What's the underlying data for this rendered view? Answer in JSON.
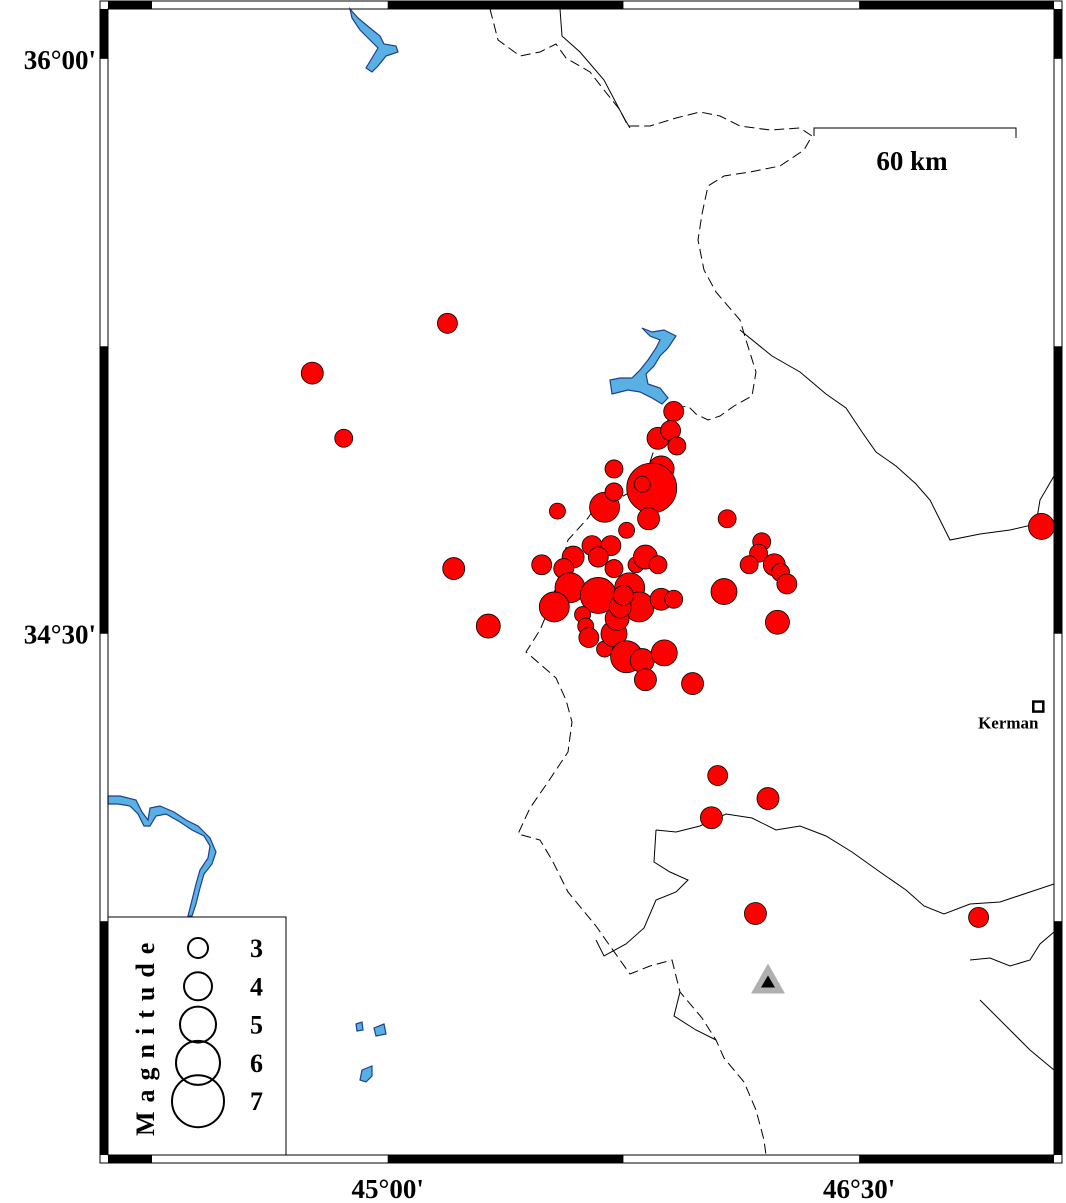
{
  "map": {
    "lon_range": [
      44.11,
      47.12
    ],
    "lat_range": [
      33.14,
      36.13
    ],
    "frame_interval_deg": 0.75,
    "x_tick_labels": [
      {
        "lon": 45.0,
        "label": "45°00'"
      },
      {
        "lon": 46.5,
        "label": "46°30'"
      }
    ],
    "y_tick_labels": [
      {
        "lat": 36.0,
        "label": "36°00'"
      },
      {
        "lat": 34.5,
        "label": "34°30'"
      }
    ],
    "scale_bar": {
      "label": "60 km"
    },
    "colors": {
      "event": "#ff0000",
      "water": "#58b0e3",
      "water_outline": "#1f3f8f",
      "station": "#000000",
      "station_halo": "#b0b0b0"
    }
  },
  "legend": {
    "title": "Magnitude",
    "entries": [
      {
        "mag": 3,
        "label": "3"
      },
      {
        "mag": 4,
        "label": "4"
      },
      {
        "mag": 5,
        "label": "5"
      },
      {
        "mag": 6,
        "label": "6"
      },
      {
        "mag": 7,
        "label": "7"
      }
    ]
  },
  "city": {
    "name": "Kerman",
    "lon": 47.07,
    "lat": 34.31
  },
  "station": {
    "lon": 46.21,
    "lat": 33.59
  },
  "events": [
    {
      "lon": 45.19,
      "lat": 35.31,
      "mag": 3.0
    },
    {
      "lon": 44.76,
      "lat": 35.18,
      "mag": 3.25
    },
    {
      "lon": 44.86,
      "lat": 35.01,
      "mag": 2.75
    },
    {
      "lon": 45.21,
      "lat": 34.67,
      "mag": 3.25
    },
    {
      "lon": 45.32,
      "lat": 34.52,
      "mag": 3.5
    },
    {
      "lon": 45.54,
      "lat": 34.82,
      "mag": 2.5
    },
    {
      "lon": 45.91,
      "lat": 35.08,
      "mag": 3.0
    },
    {
      "lon": 45.86,
      "lat": 35.01,
      "mag": 3.25
    },
    {
      "lon": 45.9,
      "lat": 35.03,
      "mag": 3.0
    },
    {
      "lon": 45.92,
      "lat": 34.99,
      "mag": 2.75
    },
    {
      "lon": 45.87,
      "lat": 34.93,
      "mag": 3.75
    },
    {
      "lon": 45.72,
      "lat": 34.93,
      "mag": 2.75
    },
    {
      "lon": 45.84,
      "lat": 34.88,
      "mag": 6.75
    },
    {
      "lon": 45.81,
      "lat": 34.89,
      "mag": 2.5
    },
    {
      "lon": 45.69,
      "lat": 34.83,
      "mag": 4.25
    },
    {
      "lon": 45.72,
      "lat": 34.87,
      "mag": 2.75
    },
    {
      "lon": 45.83,
      "lat": 34.8,
      "mag": 3.25
    },
    {
      "lon": 45.76,
      "lat": 34.77,
      "mag": 2.5
    },
    {
      "lon": 46.08,
      "lat": 34.8,
      "mag": 2.75
    },
    {
      "lon": 45.49,
      "lat": 34.68,
      "mag": 3.0
    },
    {
      "lon": 45.59,
      "lat": 34.7,
      "mag": 3.25
    },
    {
      "lon": 45.65,
      "lat": 34.73,
      "mag": 3.0
    },
    {
      "lon": 45.71,
      "lat": 34.73,
      "mag": 3.0
    },
    {
      "lon": 45.56,
      "lat": 34.67,
      "mag": 3.0
    },
    {
      "lon": 45.58,
      "lat": 34.62,
      "mag": 4.25
    },
    {
      "lon": 45.67,
      "lat": 34.7,
      "mag": 3.0
    },
    {
      "lon": 45.72,
      "lat": 34.67,
      "mag": 2.75
    },
    {
      "lon": 45.79,
      "lat": 34.68,
      "mag": 2.5
    },
    {
      "lon": 45.82,
      "lat": 34.7,
      "mag": 3.5
    },
    {
      "lon": 45.86,
      "lat": 34.68,
      "mag": 2.75
    },
    {
      "lon": 45.67,
      "lat": 34.6,
      "mag": 5.0
    },
    {
      "lon": 45.77,
      "lat": 34.62,
      "mag": 4.25
    },
    {
      "lon": 45.8,
      "lat": 34.57,
      "mag": 4.25
    },
    {
      "lon": 45.87,
      "lat": 34.59,
      "mag": 3.25
    },
    {
      "lon": 45.91,
      "lat": 34.59,
      "mag": 2.75
    },
    {
      "lon": 45.53,
      "lat": 34.57,
      "mag": 4.25
    },
    {
      "lon": 45.62,
      "lat": 34.55,
      "mag": 2.5
    },
    {
      "lon": 45.63,
      "lat": 34.52,
      "mag": 2.5
    },
    {
      "lon": 45.64,
      "lat": 34.49,
      "mag": 3.0
    },
    {
      "lon": 45.69,
      "lat": 34.46,
      "mag": 2.5
    },
    {
      "lon": 45.72,
      "lat": 34.5,
      "mag": 3.75
    },
    {
      "lon": 45.73,
      "lat": 34.54,
      "mag": 3.5
    },
    {
      "lon": 45.76,
      "lat": 34.44,
      "mag": 4.5
    },
    {
      "lon": 45.81,
      "lat": 34.43,
      "mag": 3.5
    },
    {
      "lon": 45.88,
      "lat": 34.45,
      "mag": 3.75
    },
    {
      "lon": 45.82,
      "lat": 34.38,
      "mag": 3.25
    },
    {
      "lon": 45.74,
      "lat": 34.57,
      "mag": 3.25
    },
    {
      "lon": 45.75,
      "lat": 34.6,
      "mag": 3.0
    },
    {
      "lon": 46.07,
      "lat": 34.61,
      "mag": 3.75
    },
    {
      "lon": 46.19,
      "lat": 34.74,
      "mag": 2.75
    },
    {
      "lon": 46.18,
      "lat": 34.71,
      "mag": 2.75
    },
    {
      "lon": 46.15,
      "lat": 34.68,
      "mag": 2.75
    },
    {
      "lon": 46.23,
      "lat": 34.68,
      "mag": 3.25
    },
    {
      "lon": 46.25,
      "lat": 34.66,
      "mag": 2.75
    },
    {
      "lon": 46.27,
      "lat": 34.63,
      "mag": 3.0
    },
    {
      "lon": 46.24,
      "lat": 34.53,
      "mag": 3.5
    },
    {
      "lon": 45.97,
      "lat": 34.37,
      "mag": 3.25
    },
    {
      "lon": 46.05,
      "lat": 34.13,
      "mag": 3.0
    },
    {
      "lon": 46.21,
      "lat": 34.07,
      "mag": 3.25
    },
    {
      "lon": 46.03,
      "lat": 34.02,
      "mag": 3.25
    },
    {
      "lon": 46.17,
      "lat": 33.77,
      "mag": 3.25
    },
    {
      "lon": 46.88,
      "lat": 33.76,
      "mag": 3.0
    },
    {
      "lon": 47.08,
      "lat": 34.78,
      "mag": 3.75
    }
  ]
}
